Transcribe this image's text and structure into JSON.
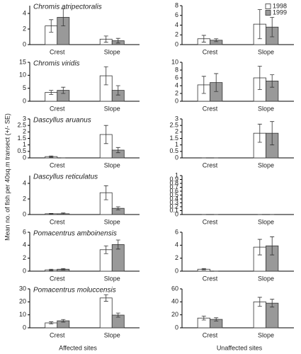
{
  "y_label": "Mean no. of fish per 40sq.m transect (+/- SE)",
  "column_labels": [
    "Affected sites",
    "Unaffected sites"
  ],
  "chart_data": [
    {
      "type": "bar",
      "title": "Chromis atripectoralis",
      "categories": [
        "Crest",
        "Slope"
      ],
      "ylim": [
        0,
        5
      ],
      "yticks": [
        0,
        2,
        4
      ],
      "series": [
        {
          "color": "#ffffff",
          "values": [
            2.4,
            0.7
          ],
          "errors": [
            0.8,
            0.4
          ]
        },
        {
          "color": "#999999",
          "values": [
            3.5,
            0.5
          ],
          "errors": [
            1.1,
            0.3
          ]
        }
      ]
    },
    {
      "type": "bar",
      "categories": [
        "Crest",
        "Slope"
      ],
      "ylim": [
        0,
        8
      ],
      "yticks": [
        0,
        2,
        4,
        6,
        8
      ],
      "legend": "upper right",
      "series": [
        {
          "name": "1998",
          "color": "#ffffff",
          "values": [
            1.2,
            4.2
          ],
          "errors": [
            0.7,
            3.0
          ]
        },
        {
          "name": "1999",
          "color": "#999999",
          "values": [
            0.9,
            3.6
          ],
          "errors": [
            0.3,
            2.0
          ]
        }
      ]
    },
    {
      "type": "bar",
      "title": "Chromis viridis",
      "categories": [
        "Crest",
        "Slope"
      ],
      "ylim": [
        0,
        15
      ],
      "yticks": [
        0,
        5,
        10,
        15
      ],
      "series": [
        {
          "color": "#ffffff",
          "values": [
            3.4,
            9.8
          ],
          "errors": [
            0.8,
            3.5
          ]
        },
        {
          "color": "#999999",
          "values": [
            4.2,
            4.2
          ],
          "errors": [
            1.2,
            1.8
          ]
        }
      ]
    },
    {
      "type": "bar",
      "categories": [
        "Crest",
        "Slope"
      ],
      "ylim": [
        0,
        10
      ],
      "yticks": [
        0,
        2,
        4,
        6,
        8,
        10
      ],
      "series": [
        {
          "color": "#ffffff",
          "values": [
            4.2,
            6.0
          ],
          "errors": [
            2.2,
            3.0
          ]
        },
        {
          "color": "#999999",
          "values": [
            4.8,
            5.2
          ],
          "errors": [
            2.3,
            1.6
          ]
        }
      ]
    },
    {
      "type": "bar",
      "title": "Dascyllus aruanus",
      "categories": [
        "Crest",
        "Slope"
      ],
      "ylim": [
        0,
        3
      ],
      "yticks": [
        0,
        0.5,
        1,
        1.5,
        2,
        2.5,
        3
      ],
      "series": [
        {
          "color": "#ffffff",
          "values": [
            0.1,
            1.8
          ],
          "errors": [
            0.05,
            0.7
          ]
        },
        {
          "color": "#999999",
          "values": [
            0,
            0.6
          ],
          "errors": [
            0,
            0.2
          ]
        }
      ]
    },
    {
      "type": "bar",
      "categories": [
        "Crest",
        "Slope"
      ],
      "ylim": [
        0,
        3
      ],
      "yticks": [
        0,
        0.5,
        1,
        1.5,
        2,
        2.5,
        3
      ],
      "series": [
        {
          "color": "#ffffff",
          "values": [
            0,
            1.9
          ],
          "errors": [
            0,
            0.7
          ]
        },
        {
          "color": "#999999",
          "values": [
            0,
            1.9
          ],
          "errors": [
            0,
            0.9
          ]
        }
      ]
    },
    {
      "type": "bar",
      "title": "Dascyllus reticulatus",
      "categories": [
        "Crest",
        "Slope"
      ],
      "ylim": [
        0,
        5
      ],
      "yticks": [
        0,
        2,
        4
      ],
      "series": [
        {
          "color": "#ffffff",
          "values": [
            0.1,
            2.8
          ],
          "errors": [
            0.05,
            0.9
          ]
        },
        {
          "color": "#999999",
          "values": [
            0.1,
            0.8
          ],
          "errors": [
            0.1,
            0.2
          ]
        }
      ]
    },
    {
      "type": "bar",
      "categories": [
        "Crest",
        "Slope"
      ],
      "ylim": [
        0,
        1
      ],
      "yticks": [
        0,
        0.1,
        0.2,
        0.3,
        0.4,
        0.5,
        0.6,
        0.7,
        0.8,
        0.9,
        1
      ],
      "series": [
        {
          "color": "#ffffff",
          "values": [
            0,
            0
          ],
          "errors": [
            0,
            0
          ]
        },
        {
          "color": "#999999",
          "values": [
            0,
            0
          ],
          "errors": [
            0,
            0
          ]
        }
      ]
    },
    {
      "type": "bar",
      "title": "Pomacentrus amboinensis",
      "categories": [
        "Crest",
        "Slope"
      ],
      "ylim": [
        0,
        6
      ],
      "yticks": [
        0,
        2,
        4,
        6
      ],
      "series": [
        {
          "color": "#ffffff",
          "values": [
            0.2,
            3.3
          ],
          "errors": [
            0.1,
            0.6
          ]
        },
        {
          "color": "#999999",
          "values": [
            0.3,
            4.1
          ],
          "errors": [
            0.1,
            0.7
          ]
        }
      ]
    },
    {
      "type": "bar",
      "categories": [
        "Crest",
        "Slope"
      ],
      "ylim": [
        0,
        6
      ],
      "yticks": [
        0,
        2,
        4,
        6
      ],
      "series": [
        {
          "color": "#ffffff",
          "values": [
            0.3,
            3.7
          ],
          "errors": [
            0.1,
            1.2
          ]
        },
        {
          "color": "#999999",
          "values": [
            0,
            3.9
          ],
          "errors": [
            0,
            1.4
          ]
        }
      ]
    },
    {
      "type": "bar",
      "title": "Pomacentrus moluccensis",
      "categories": [
        "Crest",
        "Slope"
      ],
      "ylim": [
        0,
        30
      ],
      "yticks": [
        0,
        10,
        20,
        30
      ],
      "series": [
        {
          "color": "#ffffff",
          "values": [
            3.8,
            23
          ],
          "errors": [
            0.8,
            2.5
          ]
        },
        {
          "color": "#999999",
          "values": [
            5.4,
            9.8
          ],
          "errors": [
            1.0,
            1.6
          ]
        }
      ]
    },
    {
      "type": "bar",
      "categories": [
        "Crest",
        "Slope"
      ],
      "ylim": [
        0,
        60
      ],
      "yticks": [
        0,
        20,
        40,
        60
      ],
      "series": [
        {
          "color": "#ffffff",
          "values": [
            15,
            40
          ],
          "errors": [
            3,
            7
          ]
        },
        {
          "color": "#999999",
          "values": [
            13,
            38
          ],
          "errors": [
            2.5,
            6
          ]
        }
      ]
    }
  ]
}
